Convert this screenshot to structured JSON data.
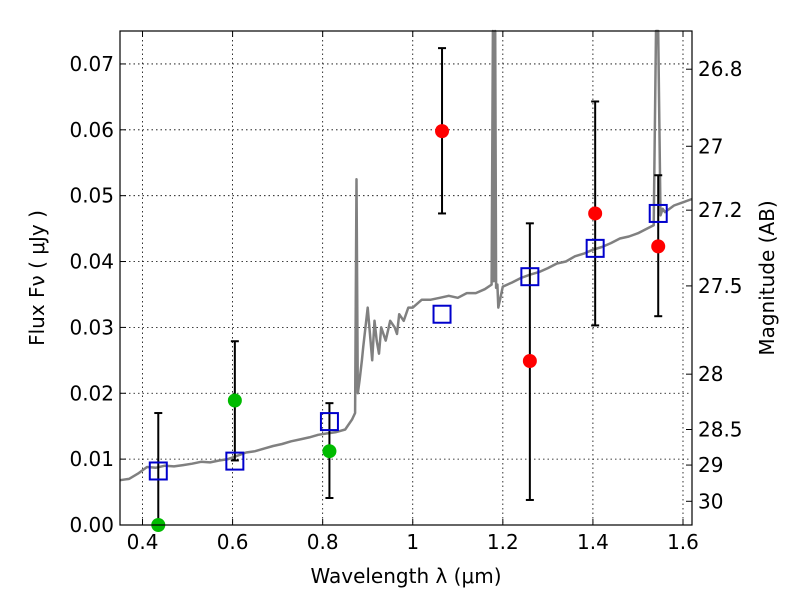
{
  "chart_data": {
    "type": "scatter",
    "xlabel": "Wavelength  λ (μm)",
    "ylabel": "Flux  Fν  ( μJy )",
    "y2label": "Magnitude (AB)",
    "xlim": [
      0.35,
      1.62
    ],
    "ylim": [
      0.0,
      0.075
    ],
    "grid": true,
    "x_ticks": [
      0.4,
      0.6,
      0.8,
      1.0,
      1.2,
      1.4,
      1.6
    ],
    "x_tick_labels": [
      "0.4",
      "0.6",
      "0.8",
      "1",
      "1.2",
      "1.4",
      "1.6"
    ],
    "y_ticks": [
      0.0,
      0.01,
      0.02,
      0.03,
      0.04,
      0.05,
      0.06,
      0.07
    ],
    "y_tick_labels": [
      "0.00",
      "0.01",
      "0.02",
      "0.03",
      "0.04",
      "0.05",
      "0.06",
      "0.07"
    ],
    "y2_ticks": [
      {
        "label": "26.8",
        "flux": 0.0692
      },
      {
        "label": "27",
        "flux": 0.0575
      },
      {
        "label": "27.2",
        "flux": 0.0478
      },
      {
        "label": "27.5",
        "flux": 0.0363
      },
      {
        "label": "28",
        "flux": 0.0229
      },
      {
        "label": "28.5",
        "flux": 0.0145
      },
      {
        "label": "29",
        "flux": 0.0091
      },
      {
        "label": "30",
        "flux": 0.0036
      }
    ],
    "colors": {
      "template": "#808080",
      "model": "#0000cc",
      "observed": "#ff0000",
      "upper": "#00bb00",
      "errorbar": "#000000"
    },
    "series": [
      {
        "name": "template spectrum",
        "kind": "line",
        "x": [
          0.35,
          0.37,
          0.39,
          0.41,
          0.43,
          0.45,
          0.47,
          0.49,
          0.51,
          0.53,
          0.55,
          0.57,
          0.59,
          0.61,
          0.63,
          0.65,
          0.67,
          0.69,
          0.71,
          0.73,
          0.75,
          0.77,
          0.79,
          0.81,
          0.83,
          0.85,
          0.865,
          0.872,
          0.875,
          0.878,
          0.882,
          0.887,
          0.89,
          0.9,
          0.91,
          0.915,
          0.92,
          0.925,
          0.93,
          0.94,
          0.95,
          0.96,
          0.965,
          0.97,
          0.98,
          0.99,
          1.0,
          1.02,
          1.04,
          1.06,
          1.08,
          1.1,
          1.12,
          1.14,
          1.16,
          1.175,
          1.178,
          1.18,
          1.183,
          1.185,
          1.188,
          1.19,
          1.2,
          1.22,
          1.24,
          1.26,
          1.28,
          1.3,
          1.32,
          1.34,
          1.36,
          1.38,
          1.4,
          1.42,
          1.44,
          1.46,
          1.48,
          1.5,
          1.52,
          1.535,
          1.54,
          1.545,
          1.55,
          1.555,
          1.56,
          1.58,
          1.6,
          1.62
        ],
        "y": [
          0.0068,
          0.007,
          0.0078,
          0.0088,
          0.0087,
          0.009,
          0.0089,
          0.0091,
          0.0093,
          0.0096,
          0.0095,
          0.0098,
          0.01,
          0.0105,
          0.011,
          0.0112,
          0.0116,
          0.012,
          0.0123,
          0.0127,
          0.013,
          0.0133,
          0.0137,
          0.0139,
          0.0141,
          0.0145,
          0.016,
          0.017,
          0.0525,
          0.02,
          0.022,
          0.025,
          0.027,
          0.033,
          0.025,
          0.031,
          0.028,
          0.026,
          0.03,
          0.028,
          0.031,
          0.03,
          0.029,
          0.032,
          0.031,
          0.033,
          0.033,
          0.0342,
          0.0342,
          0.0345,
          0.0348,
          0.0345,
          0.0352,
          0.0352,
          0.0358,
          0.0365,
          0.075,
          0.037,
          0.075,
          0.036,
          0.0365,
          0.033,
          0.0362,
          0.0368,
          0.0375,
          0.038,
          0.0384,
          0.039,
          0.0397,
          0.04,
          0.0408,
          0.0412,
          0.0418,
          0.0422,
          0.0428,
          0.0435,
          0.0438,
          0.0443,
          0.045,
          0.0455,
          0.075,
          0.075,
          0.047,
          0.048,
          0.0475,
          0.0485,
          0.049,
          0.0495
        ]
      },
      {
        "name": "model photometry",
        "kind": "square",
        "x": [
          0.435,
          0.605,
          0.815,
          1.065,
          1.26,
          1.405,
          1.545
        ],
        "y": [
          0.0082,
          0.0097,
          0.0157,
          0.032,
          0.0377,
          0.042,
          0.0473
        ]
      },
      {
        "name": "observed flux",
        "kind": "circle",
        "x": [
          1.065,
          1.26,
          1.405,
          1.545
        ],
        "y": [
          0.0598,
          0.0249,
          0.0473,
          0.0423
        ],
        "err_low": [
          0.0473,
          0.0038,
          0.0303,
          0.0317
        ],
        "err_high": [
          0.0724,
          0.0458,
          0.0643,
          0.0531
        ]
      },
      {
        "name": "upper limits",
        "kind": "circle",
        "x": [
          0.435,
          0.605,
          0.815
        ],
        "y": [
          0.0,
          0.0189,
          0.0112
        ],
        "err_low": [
          0.0,
          0.0098,
          0.0041
        ],
        "err_high": [
          0.017,
          0.0279,
          0.0185
        ]
      }
    ]
  }
}
